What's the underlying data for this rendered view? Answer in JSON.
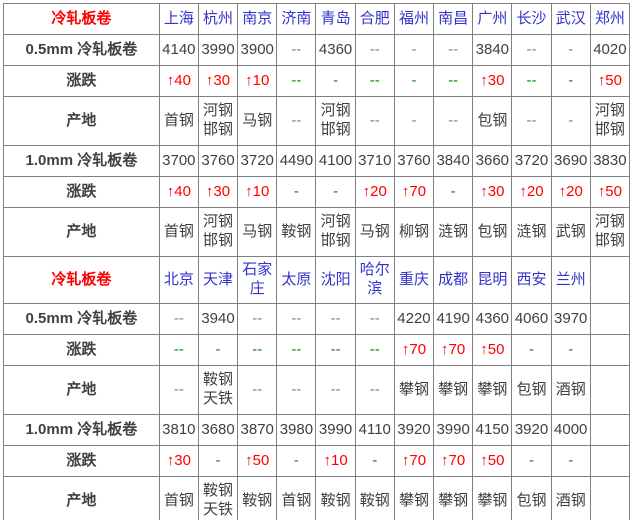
{
  "table": {
    "sections": [
      {
        "label": "冷轧板卷",
        "cities": [
          "上海",
          "杭州",
          "南京",
          "济南",
          "青岛",
          "合肥",
          "福州",
          "南昌",
          "广州",
          "长沙",
          "武汉",
          "郑州"
        ],
        "rows": [
          {
            "label": "0.5mm 冷轧板卷",
            "type": "price",
            "cells": [
              "4140",
              "3990",
              "3900",
              "--",
              "4360",
              "--",
              "-",
              "--",
              "3840",
              "--",
              "-",
              "4020"
            ]
          },
          {
            "label": "涨跌",
            "type": "change",
            "cells": [
              "↑40",
              "↑30",
              "↑10",
              "--",
              "-",
              "--",
              "-",
              "--",
              "↑30",
              "--",
              "-",
              "↑50"
            ]
          },
          {
            "label": "产地",
            "type": "origin",
            "cells": [
              "首钢",
              "河钢邯钢",
              "马钢",
              "--",
              "河钢邯钢",
              "--",
              "-",
              "--",
              "包钢",
              "--",
              "-",
              "河钢邯钢"
            ]
          },
          {
            "label": "1.0mm 冷轧板卷",
            "type": "price",
            "cells": [
              "3700",
              "3760",
              "3720",
              "4490",
              "4100",
              "3710",
              "3760",
              "3840",
              "3660",
              "3720",
              "3690",
              "3830"
            ]
          },
          {
            "label": "涨跌",
            "type": "change",
            "cells": [
              "↑40",
              "↑30",
              "↑10",
              "-",
              "-",
              "↑20",
              "↑70",
              "-",
              "↑30",
              "↑20",
              "↑20",
              "↑50"
            ]
          },
          {
            "label": "产地",
            "type": "origin",
            "cells": [
              "首钢",
              "河钢邯钢",
              "马钢",
              "鞍钢",
              "河钢邯钢",
              "马钢",
              "柳钢",
              "涟钢",
              "包钢",
              "涟钢",
              "武钢",
              "河钢邯钢"
            ]
          }
        ]
      },
      {
        "label": "冷轧板卷",
        "cities": [
          "北京",
          "天津",
          "石家庄",
          "太原",
          "沈阳",
          "哈尔滨",
          "重庆",
          "成都",
          "昆明",
          "西安",
          "兰州",
          ""
        ],
        "rows": [
          {
            "label": "0.5mm 冷轧板卷",
            "type": "price",
            "cells": [
              "--",
              "3940",
              "--",
              "--",
              "--",
              "--",
              "4220",
              "4190",
              "4360",
              "4060",
              "3970",
              ""
            ]
          },
          {
            "label": "涨跌",
            "type": "change",
            "cells": [
              "--",
              "-",
              "--",
              "--",
              "--",
              "--",
              "↑70",
              "↑70",
              "↑50",
              "-",
              "-",
              ""
            ]
          },
          {
            "label": "产地",
            "type": "origin",
            "cells": [
              "--",
              "鞍钢天铁",
              "--",
              "--",
              "--",
              "--",
              "攀钢",
              "攀钢",
              "攀钢",
              "包钢",
              "酒钢",
              ""
            ]
          },
          {
            "label": "1.0mm 冷轧板卷",
            "type": "price",
            "cells": [
              "3810",
              "3680",
              "3870",
              "3980",
              "3990",
              "4110",
              "3920",
              "3990",
              "4150",
              "3920",
              "4000",
              ""
            ]
          },
          {
            "label": "涨跌",
            "type": "change",
            "cells": [
              "↑30",
              "-",
              "↑50",
              "-",
              "↑10",
              "-",
              "↑70",
              "↑70",
              "↑50",
              "-",
              "-",
              ""
            ]
          },
          {
            "label": "产地",
            "type": "origin",
            "cells": [
              "首钢",
              "鞍钢天铁",
              "鞍钢",
              "首钢",
              "鞍钢",
              "鞍钢",
              "攀钢",
              "攀钢",
              "攀钢",
              "包钢",
              "酒钢",
              ""
            ]
          }
        ]
      }
    ],
    "colors": {
      "section_label": "#ff0000",
      "city_link": "#3333cc",
      "price_text": "#404040",
      "up_change": "#ff0000",
      "flat_dash_green": "#008800",
      "muted_dash_gray": "#808080",
      "border": "#808080",
      "background": "#ffffff"
    }
  }
}
